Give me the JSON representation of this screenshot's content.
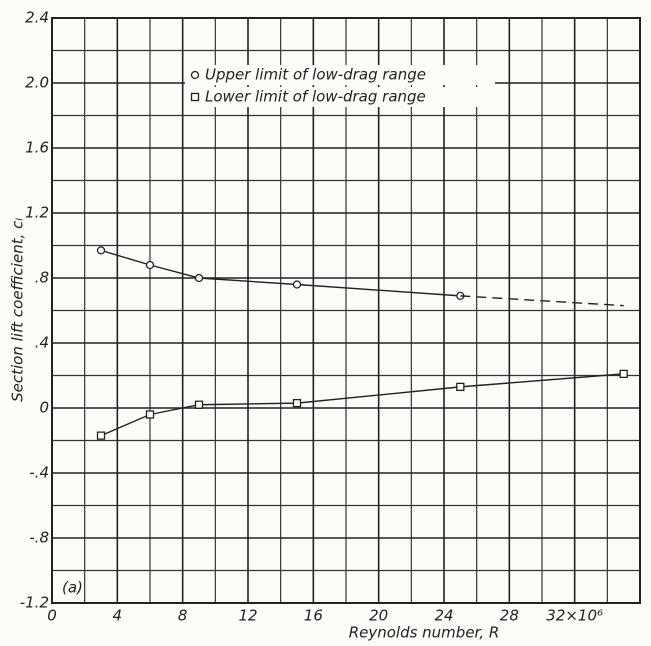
{
  "chart_data": {
    "type": "line",
    "ylabel": "Section lift coefficient, cₗ",
    "xlabel": "Reynolds number, R",
    "annotation": "(a)",
    "xlim": [
      0,
      36
    ],
    "ylim": [
      -1.2,
      2.4
    ],
    "xticks": [
      0,
      4,
      8,
      12,
      16,
      20,
      24,
      28,
      {
        "value": 32,
        "label": "32×10⁶"
      }
    ],
    "yticks": [
      {
        "value": 2.4,
        "label": "2.4"
      },
      {
        "value": 2.0,
        "label": "2.0"
      },
      {
        "value": 1.6,
        "label": "1.6"
      },
      {
        "value": 1.2,
        "label": "1.2"
      },
      {
        "value": 0.8,
        "label": ".8"
      },
      {
        "value": 0.4,
        "label": ".4"
      },
      0,
      {
        "value": -0.4,
        "label": "-.4"
      },
      {
        "value": -0.8,
        "label": "-.8"
      },
      {
        "value": -1.2,
        "label": "-1.2"
      }
    ],
    "xminor": [
      2,
      6,
      10,
      14,
      18,
      22,
      26,
      30,
      34
    ],
    "yminor": [
      2.2,
      1.8,
      1.4,
      1.0,
      0.6,
      0.2,
      -0.2,
      -0.6,
      -1.0
    ],
    "grid": true,
    "series": [
      {
        "name": "Upper limit of low-drag range",
        "marker": "circle",
        "color": "#222222",
        "x": [
          3,
          6,
          9,
          15,
          25
        ],
        "values": [
          0.97,
          0.88,
          0.8,
          0.76,
          0.69
        ]
      },
      {
        "name": "Lower limit of low-drag range",
        "marker": "square",
        "color": "#222222",
        "x": [
          3,
          6,
          9,
          15,
          25,
          35
        ],
        "values": [
          -0.17,
          -0.04,
          0.02,
          0.03,
          0.13,
          0.21
        ]
      },
      {
        "style": "dashed",
        "color": "#222222",
        "x": [
          25,
          35
        ],
        "values": [
          0.69,
          0.63
        ]
      }
    ]
  }
}
